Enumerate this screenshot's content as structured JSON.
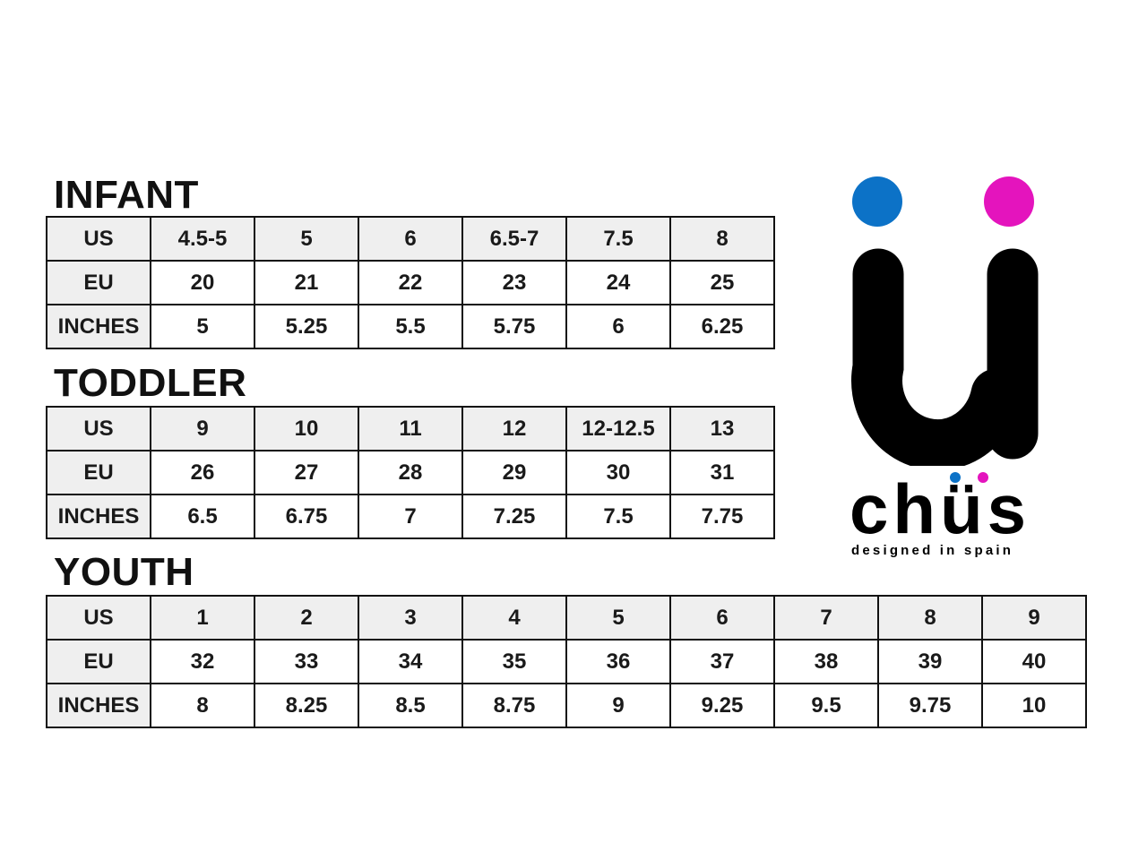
{
  "sections": [
    {
      "title": "INFANT",
      "rows": [
        [
          "US",
          "4.5-5",
          "5",
          "6",
          "6.5-7",
          "7.5",
          "8"
        ],
        [
          "EU",
          "20",
          "21",
          "22",
          "23",
          "24",
          "25"
        ],
        [
          "INCHES",
          "5",
          "5.25",
          "5.5",
          "5.75",
          "6",
          "6.25"
        ]
      ]
    },
    {
      "title": "TODDLER",
      "rows": [
        [
          "US",
          "9",
          "10",
          "11",
          "12",
          "12-12.5",
          "13"
        ],
        [
          "EU",
          "26",
          "27",
          "28",
          "29",
          "30",
          "31"
        ],
        [
          "INCHES",
          "6.5",
          "6.75",
          "7",
          "7.25",
          "7.5",
          "7.75"
        ]
      ]
    },
    {
      "title": "YOUTH",
      "rows": [
        [
          "US",
          "1",
          "2",
          "3",
          "4",
          "5",
          "6",
          "7",
          "8",
          "9"
        ],
        [
          "EU",
          "32",
          "33",
          "34",
          "35",
          "36",
          "37",
          "38",
          "39",
          "40"
        ],
        [
          "INCHES",
          "8",
          "8.25",
          "8.5",
          "8.75",
          "9",
          "9.25",
          "9.5",
          "9.75",
          "10"
        ]
      ]
    }
  ],
  "logo": {
    "brand": "chüs",
    "tagline": "designed in spain",
    "colors": {
      "blue": "#0c72c7",
      "pink": "#e414bd",
      "black": "#000000"
    }
  }
}
